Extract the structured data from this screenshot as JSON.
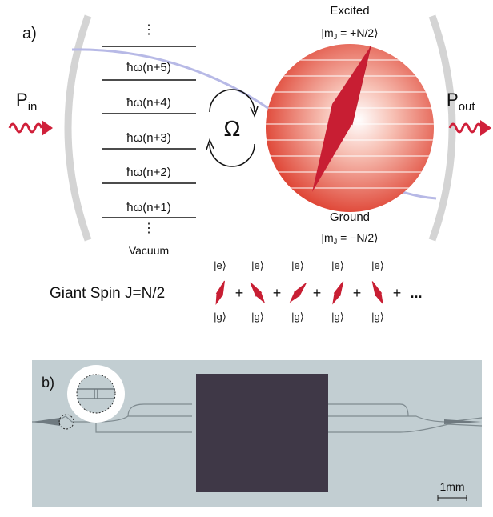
{
  "panel_a": {
    "label": "a)",
    "p_in": {
      "main": "P",
      "sub": "in"
    },
    "p_out": {
      "main": "P",
      "sub": "out"
    },
    "levels": [
      "ħω(n+5)",
      "ħω(n+4)",
      "ħω(n+3)",
      "ħω(n+2)",
      "ħω(n+1)"
    ],
    "dots": "⋮",
    "vacuum": "Vacuum",
    "omega": "Ω",
    "excited": {
      "title": "Excited",
      "state_left": "|m",
      "state_sub": "J",
      "state_right": " = +N/2⟩"
    },
    "ground": {
      "title": "Ground",
      "state_left": "|m",
      "state_sub": "J",
      "state_right": " = −N/2⟩"
    },
    "giant_spin": {
      "label": "Giant Spin J=N/2",
      "excited": "|e⟩",
      "ground": "|g⟩",
      "plus": "+",
      "ellipsis": "..."
    }
  },
  "panel_b": {
    "label": "b)",
    "scale": "1mm"
  }
}
